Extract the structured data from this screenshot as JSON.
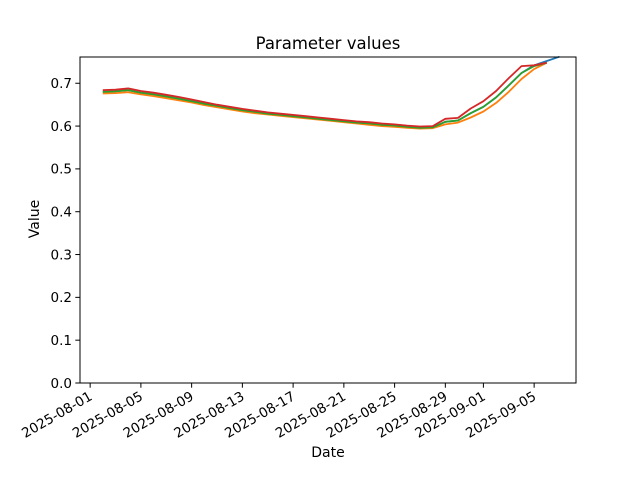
{
  "chart_data": {
    "type": "line",
    "title": "Parameter values",
    "xlabel": "Date",
    "ylabel": "Value",
    "background": "#ffffff",
    "axis_color": "#000000",
    "grid": false,
    "legend": null,
    "x_unit": "days since 2025-08-01",
    "xlim": [
      -0.8,
      38.3
    ],
    "ylim": [
      0.0,
      0.7613
    ],
    "x_ticks": {
      "offsets": [
        0,
        4,
        8,
        12,
        16,
        20,
        24,
        28,
        31,
        35
      ],
      "labels": [
        "2025-08-01",
        "2025-08-05",
        "2025-08-09",
        "2025-08-13",
        "2025-08-17",
        "2025-08-21",
        "2025-08-25",
        "2025-08-29",
        "2025-09-01",
        "2025-09-05"
      ],
      "rotation_deg": -30
    },
    "y_ticks": {
      "values": [
        0.0,
        0.1,
        0.2,
        0.3,
        0.4,
        0.5,
        0.6,
        0.7
      ],
      "labels": [
        "0.0",
        "0.1",
        "0.2",
        "0.3",
        "0.4",
        "0.5",
        "0.6",
        "0.7"
      ]
    },
    "series": [
      {
        "name": "blue",
        "color": "#1f77b4",
        "start_offset": 1,
        "start_date": "2025-08-02",
        "cadence": "daily",
        "values": [
          0.68,
          0.681,
          0.684,
          0.678,
          0.674,
          0.669,
          0.664,
          0.658,
          0.652,
          0.647,
          0.642,
          0.637,
          0.633,
          0.629,
          0.626,
          0.623,
          0.62,
          0.617,
          0.614,
          0.611,
          0.608,
          0.606,
          0.603,
          0.601,
          0.598,
          0.596,
          0.597,
          0.61,
          0.613,
          0.63,
          0.645,
          0.667,
          0.695,
          0.724,
          0.742,
          0.752,
          0.762
        ]
      },
      {
        "name": "orange",
        "color": "#ff7f0e",
        "start_offset": 1,
        "start_date": "2025-08-02",
        "cadence": "daily",
        "values": [
          0.676,
          0.677,
          0.679,
          0.674,
          0.67,
          0.665,
          0.66,
          0.655,
          0.649,
          0.644,
          0.639,
          0.634,
          0.63,
          0.627,
          0.624,
          0.621,
          0.618,
          0.615,
          0.612,
          0.609,
          0.606,
          0.603,
          0.6,
          0.598,
          0.596,
          0.594,
          0.595,
          0.604,
          0.608,
          0.62,
          0.634,
          0.654,
          0.68,
          0.71,
          0.733,
          0.748
        ]
      },
      {
        "name": "green",
        "color": "#2ca02c",
        "start_offset": 1,
        "start_date": "2025-08-02",
        "cadence": "daily",
        "values": [
          0.68,
          0.681,
          0.684,
          0.678,
          0.674,
          0.669,
          0.664,
          0.658,
          0.652,
          0.647,
          0.642,
          0.637,
          0.633,
          0.629,
          0.626,
          0.623,
          0.62,
          0.617,
          0.614,
          0.611,
          0.608,
          0.606,
          0.603,
          0.601,
          0.598,
          0.596,
          0.597,
          0.61,
          0.613,
          0.63,
          0.645,
          0.667,
          0.695,
          0.724,
          0.74,
          0.748
        ]
      },
      {
        "name": "red",
        "color": "#d62728",
        "start_offset": 1,
        "start_date": "2025-08-02",
        "cadence": "daily",
        "values": [
          0.684,
          0.685,
          0.688,
          0.682,
          0.678,
          0.673,
          0.668,
          0.662,
          0.656,
          0.65,
          0.645,
          0.64,
          0.636,
          0.632,
          0.629,
          0.626,
          0.623,
          0.62,
          0.617,
          0.614,
          0.611,
          0.609,
          0.606,
          0.604,
          0.601,
          0.599,
          0.6,
          0.617,
          0.619,
          0.641,
          0.658,
          0.682,
          0.712,
          0.74,
          0.742,
          0.748
        ]
      }
    ]
  }
}
